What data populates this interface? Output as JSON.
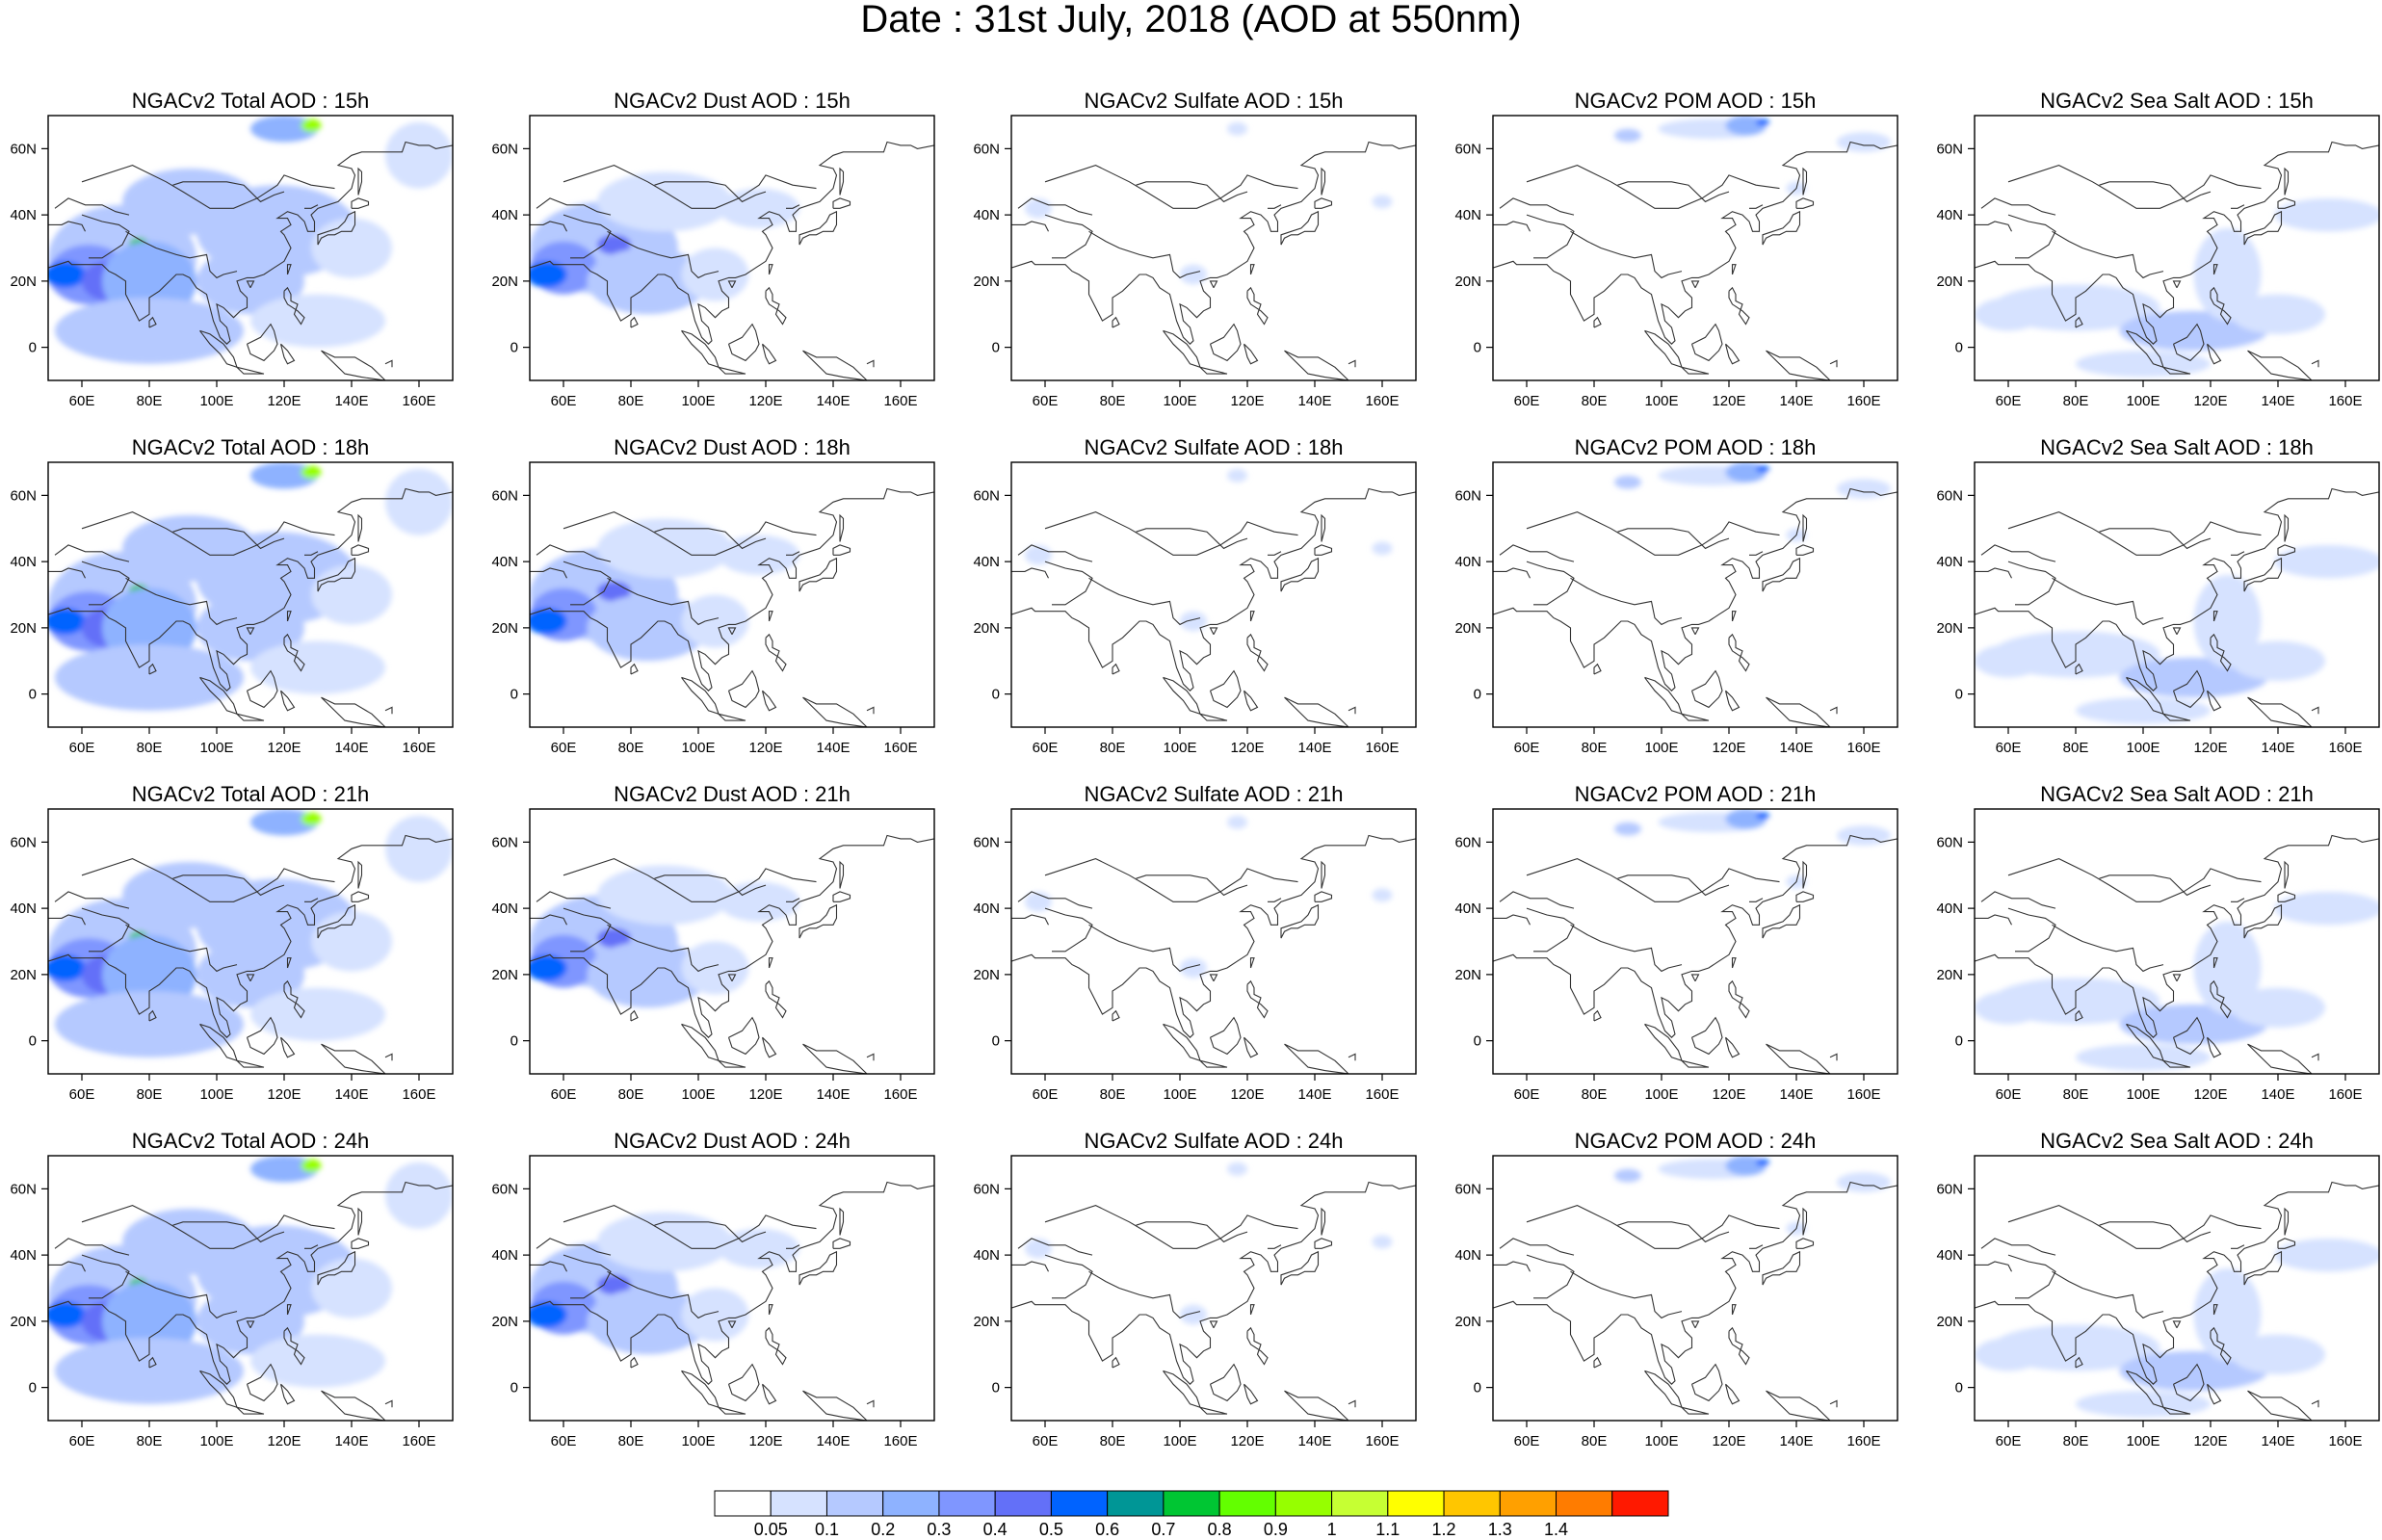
{
  "title": "Date : 31st July, 2018 (AOD at 550nm)",
  "x_ticks": [
    "60E",
    "80E",
    "100E",
    "120E",
    "140E",
    "160E"
  ],
  "y_ticks": [
    "60N",
    "40N",
    "20N",
    "0"
  ],
  "panels": [
    {
      "title": "NGACv2 Total AOD : 15h",
      "species": "total",
      "hour": 15
    },
    {
      "title": "NGACv2 Dust AOD : 15h",
      "species": "dust",
      "hour": 15
    },
    {
      "title": "NGACv2 Sulfate AOD : 15h",
      "species": "sulfate",
      "hour": 15
    },
    {
      "title": "NGACv2 POM AOD : 15h",
      "species": "pom",
      "hour": 15
    },
    {
      "title": "NGACv2 Sea Salt AOD : 15h",
      "species": "seasalt",
      "hour": 15
    },
    {
      "title": "NGACv2 Total AOD : 18h",
      "species": "total",
      "hour": 18
    },
    {
      "title": "NGACv2 Dust AOD : 18h",
      "species": "dust",
      "hour": 18
    },
    {
      "title": "NGACv2 Sulfate AOD : 18h",
      "species": "sulfate",
      "hour": 18
    },
    {
      "title": "NGACv2 POM AOD : 18h",
      "species": "pom",
      "hour": 18
    },
    {
      "title": "NGACv2 Sea Salt AOD : 18h",
      "species": "seasalt",
      "hour": 18
    },
    {
      "title": "NGACv2 Total AOD : 21h",
      "species": "total",
      "hour": 21
    },
    {
      "title": "NGACv2 Dust AOD : 21h",
      "species": "dust",
      "hour": 21
    },
    {
      "title": "NGACv2 Sulfate AOD : 21h",
      "species": "sulfate",
      "hour": 21
    },
    {
      "title": "NGACv2 POM AOD : 21h",
      "species": "pom",
      "hour": 21
    },
    {
      "title": "NGACv2 Sea Salt AOD : 21h",
      "species": "seasalt",
      "hour": 21
    },
    {
      "title": "NGACv2 Total AOD : 24h",
      "species": "total",
      "hour": 24
    },
    {
      "title": "NGACv2 Dust AOD : 24h",
      "species": "dust",
      "hour": 24
    },
    {
      "title": "NGACv2 Sulfate AOD : 24h",
      "species": "sulfate",
      "hour": 24
    },
    {
      "title": "NGACv2 POM AOD : 24h",
      "species": "pom",
      "hour": 24
    },
    {
      "title": "NGACv2 Sea Salt  AOD : 24h",
      "species": "seasalt",
      "hour": 24
    }
  ],
  "colorbar": {
    "colors": [
      "#ffffff",
      "#d6e2ff",
      "#b5c9ff",
      "#8eb2ff",
      "#7f96ff",
      "#6370f8",
      "#0063ff",
      "#009696",
      "#00c633",
      "#63ff00",
      "#96ff00",
      "#c6ff33",
      "#ffff00",
      "#ffc600",
      "#ffa000",
      "#ff7c00",
      "#ff1900"
    ],
    "labels": [
      "0.05",
      "0.1",
      "0.2",
      "0.3",
      "0.4",
      "0.5",
      "0.6",
      "0.7",
      "0.8",
      "0.9",
      "1",
      "1.1",
      "1.2",
      "1.3",
      "1.4"
    ]
  }
}
